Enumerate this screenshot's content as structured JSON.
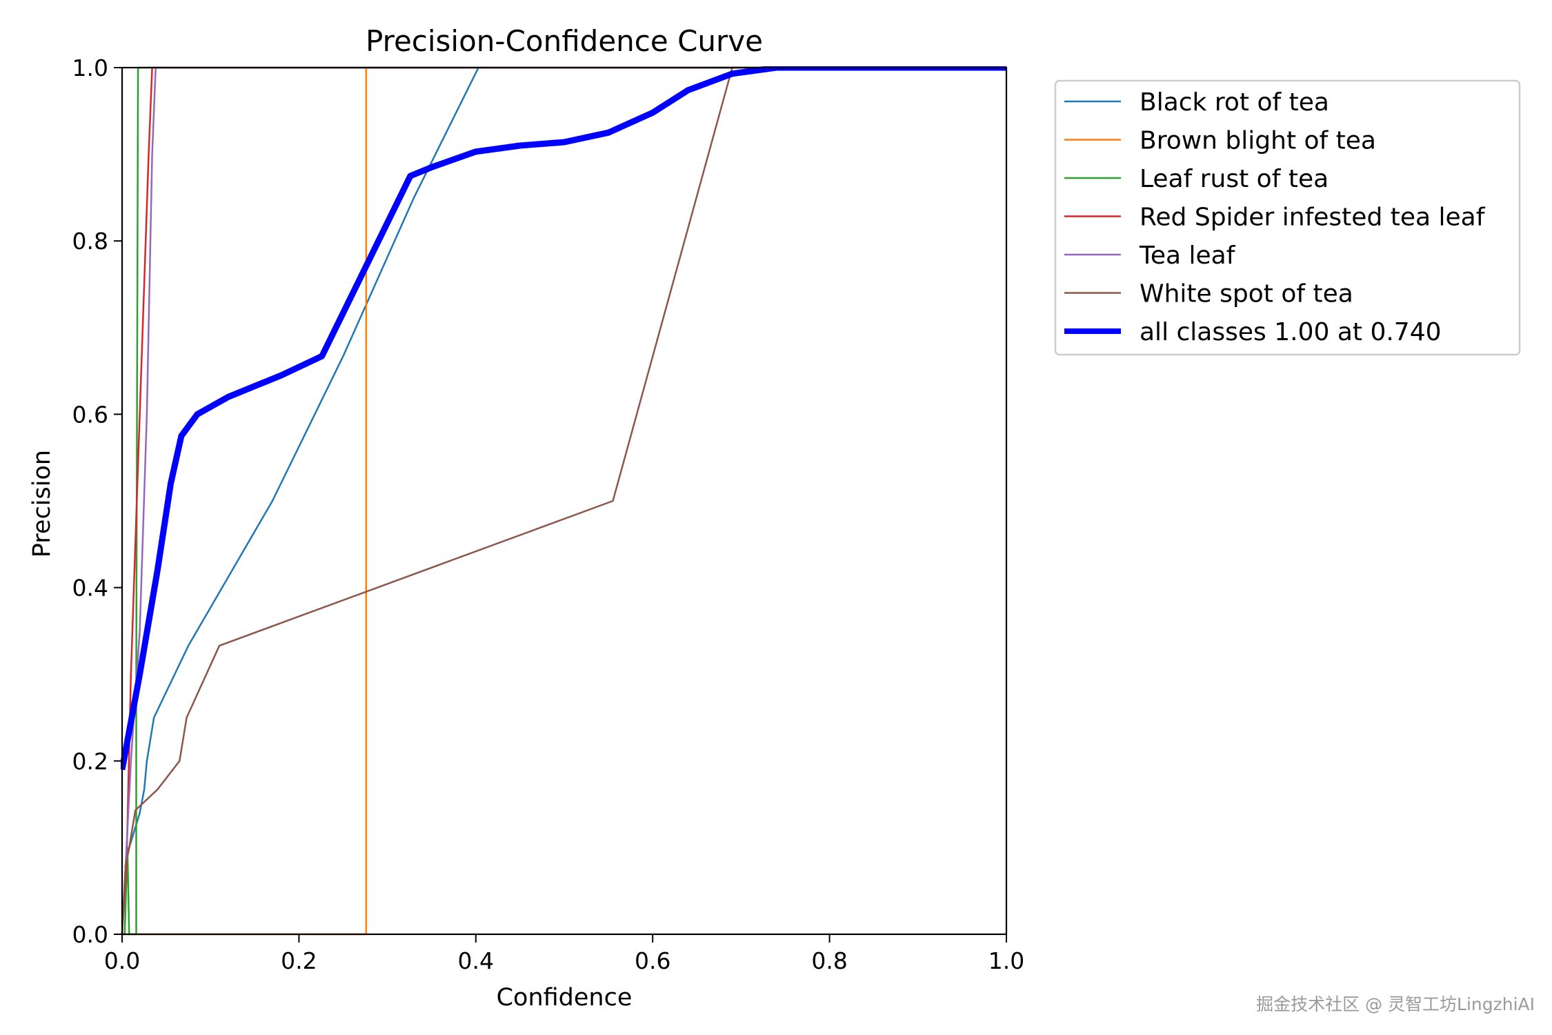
{
  "chart_data": {
    "type": "line",
    "title": "Precision-Confidence Curve",
    "xlabel": "Confidence",
    "ylabel": "Precision",
    "xlim": [
      0,
      1
    ],
    "ylim": [
      0,
      1
    ],
    "xticks": [
      "0.0",
      "0.2",
      "0.4",
      "0.6",
      "0.8",
      "1.0"
    ],
    "yticks": [
      "0.0",
      "0.2",
      "0.4",
      "0.6",
      "0.8",
      "1.0"
    ],
    "grid": false,
    "legend_position": "outside-upper-right",
    "series": [
      {
        "name": "Black rot of tea",
        "color": "#1f77b4",
        "width": 2.5,
        "points": [
          [
            0.0,
            0.0
          ],
          [
            0.004,
            0.08
          ],
          [
            0.008,
            0.1
          ],
          [
            0.02,
            0.14
          ],
          [
            0.025,
            0.167
          ],
          [
            0.028,
            0.2
          ],
          [
            0.036,
            0.25
          ],
          [
            0.075,
            0.333
          ],
          [
            0.17,
            0.5
          ],
          [
            0.25,
            0.667
          ],
          [
            0.33,
            0.85
          ],
          [
            0.403,
            1.0
          ],
          [
            1.0,
            1.0
          ]
        ]
      },
      {
        "name": "Brown blight of tea",
        "color": "#ff7f0e",
        "width": 2.5,
        "points": [
          [
            0.0,
            0.0
          ],
          [
            0.276,
            0.0
          ],
          [
            0.276,
            1.0
          ],
          [
            1.0,
            1.0
          ]
        ]
      },
      {
        "name": "Leaf rust of tea",
        "color": "#2ca02c",
        "width": 2.5,
        "points": [
          [
            0.0,
            0.0
          ],
          [
            0.003,
            0.0
          ],
          [
            0.006,
            0.1
          ],
          [
            0.008,
            0.0
          ],
          [
            0.016,
            0.0
          ],
          [
            0.016,
            0.3
          ],
          [
            0.018,
            1.0
          ],
          [
            1.0,
            1.0
          ]
        ]
      },
      {
        "name": "Red Spider infested tea leaf",
        "color": "#d62728",
        "width": 2.5,
        "points": [
          [
            0.0,
            0.0
          ],
          [
            0.005,
            0.08
          ],
          [
            0.01,
            0.3
          ],
          [
            0.02,
            0.6
          ],
          [
            0.03,
            0.9
          ],
          [
            0.034,
            1.0
          ],
          [
            1.0,
            1.0
          ]
        ]
      },
      {
        "name": "Tea leaf",
        "color": "#9467bd",
        "width": 2.5,
        "points": [
          [
            0.0,
            0.0
          ],
          [
            0.005,
            0.1
          ],
          [
            0.01,
            0.2
          ],
          [
            0.02,
            0.35
          ],
          [
            0.028,
            0.6
          ],
          [
            0.034,
            0.9
          ],
          [
            0.038,
            1.0
          ],
          [
            1.0,
            1.0
          ]
        ]
      },
      {
        "name": "White spot of tea",
        "color": "#8c564b",
        "width": 2.5,
        "points": [
          [
            0.0,
            0.0
          ],
          [
            0.004,
            0.08
          ],
          [
            0.008,
            0.1
          ],
          [
            0.015,
            0.143
          ],
          [
            0.04,
            0.167
          ],
          [
            0.065,
            0.2
          ],
          [
            0.073,
            0.25
          ],
          [
            0.11,
            0.333
          ],
          [
            0.555,
            0.5
          ],
          [
            0.69,
            1.0
          ],
          [
            1.0,
            1.0
          ]
        ]
      },
      {
        "name": "all classes 1.00 at 0.740",
        "color": "#0000ff",
        "width": 9,
        "points": [
          [
            0.0,
            0.19
          ],
          [
            0.02,
            0.3
          ],
          [
            0.04,
            0.42
          ],
          [
            0.055,
            0.52
          ],
          [
            0.067,
            0.575
          ],
          [
            0.085,
            0.6
          ],
          [
            0.12,
            0.62
          ],
          [
            0.18,
            0.645
          ],
          [
            0.226,
            0.667
          ],
          [
            0.326,
            0.875
          ],
          [
            0.35,
            0.885
          ],
          [
            0.4,
            0.903
          ],
          [
            0.45,
            0.91
          ],
          [
            0.5,
            0.914
          ],
          [
            0.55,
            0.925
          ],
          [
            0.6,
            0.948
          ],
          [
            0.64,
            0.974
          ],
          [
            0.69,
            0.993
          ],
          [
            0.74,
            1.0
          ],
          [
            1.0,
            1.0
          ]
        ]
      }
    ]
  },
  "watermark": "掘金技术社区 @ 灵智工坊LingzhiAI"
}
